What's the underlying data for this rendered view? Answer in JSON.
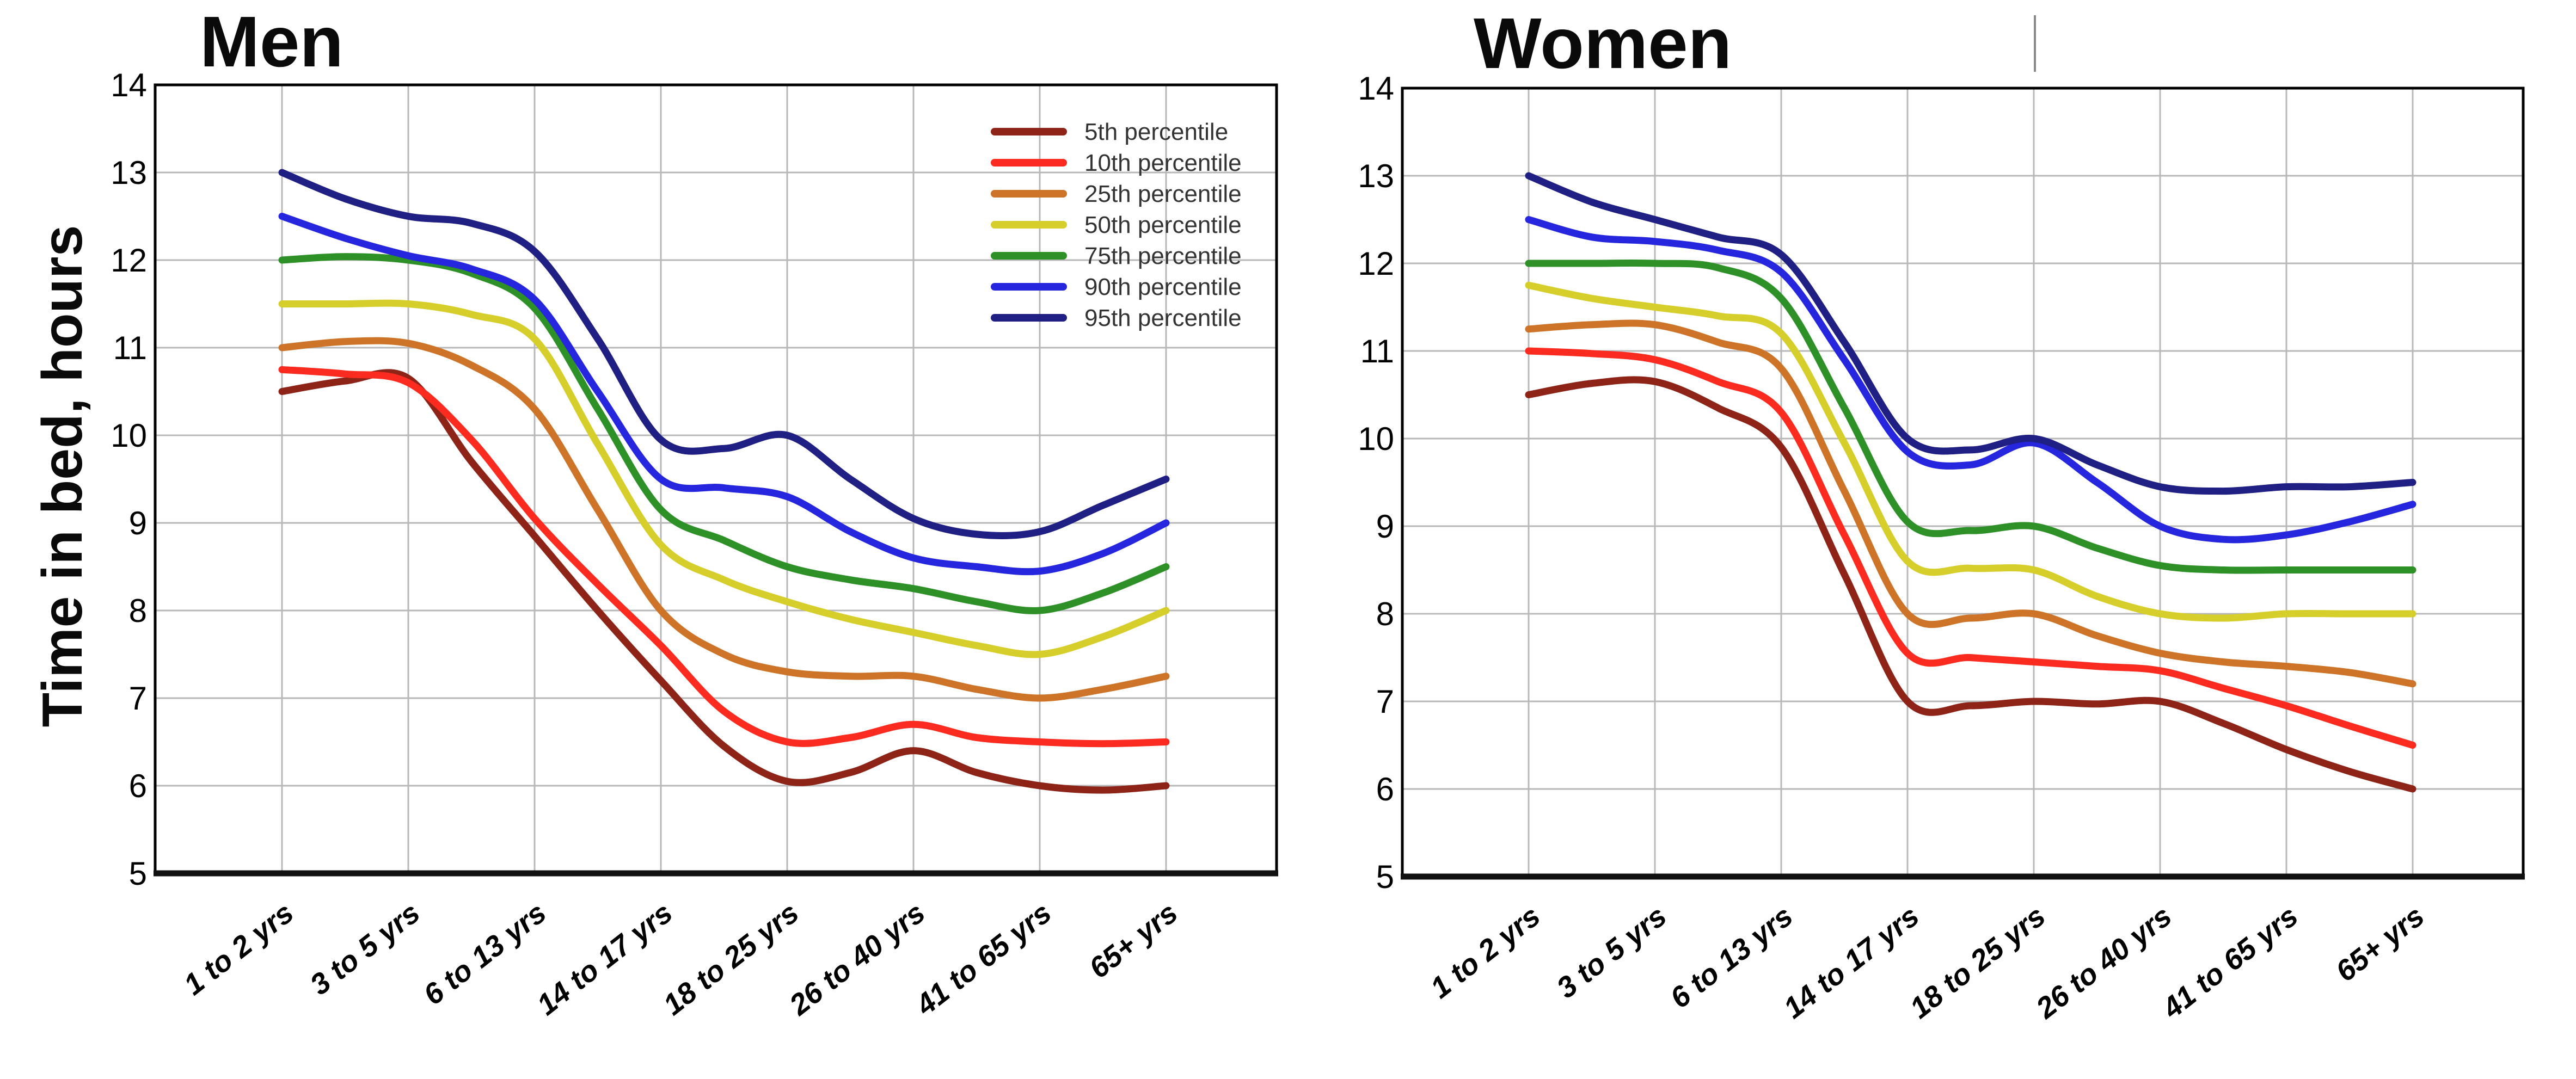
{
  "figure": {
    "description": "Two side-by-side line charts of time in bed (hours) by age group, percentiles 5th-95th",
    "left_chart_title": "Men",
    "right_chart_title": "Women",
    "stray_mark": "short vertical gray line above right chart"
  },
  "y_axis": {
    "label": "Time in bed, hours",
    "min": 5,
    "max": 14,
    "ticks": [
      14,
      13,
      12,
      11,
      10,
      9,
      8,
      7,
      6,
      5
    ]
  },
  "x_axis": {
    "categories": [
      "1 to 2 yrs",
      "3 to 5 yrs",
      "6 to 13 yrs",
      "14 to 17 yrs",
      "18 to 25 yrs",
      "26 to 40 yrs",
      "41 to 65 yrs",
      "65+ yrs"
    ]
  },
  "legend": {
    "position": "inside top-right of Men chart",
    "entries": [
      {
        "label": "5th percentile",
        "color": "#8E2418"
      },
      {
        "label": "10th percentile",
        "color": "#FB2B20"
      },
      {
        "label": "25th percentile",
        "color": "#CE7428"
      },
      {
        "label": "50th percentile",
        "color": "#D5CE2B"
      },
      {
        "label": "75th percentile",
        "color": "#2E9128"
      },
      {
        "label": "90th percentile",
        "color": "#2626DF"
      },
      {
        "label": "95th percentile",
        "color": "#1F1F84"
      }
    ]
  },
  "chart_data": [
    {
      "type": "line",
      "title": "Men",
      "xlabel": "",
      "ylabel": "Time in bed, hours",
      "ylim": [
        5,
        14
      ],
      "grid": true,
      "categories": [
        "1 to 2 yrs",
        "3 to 5 yrs",
        "6 to 13 yrs",
        "14 to 17 yrs",
        "18 to 25 yrs",
        "26 to 40 yrs",
        "41 to 65 yrs",
        "65+ yrs"
      ],
      "series": [
        {
          "name": "5th percentile",
          "color": "#8E2418",
          "values": [
            10.5,
            10.65,
            8.85,
            7.2,
            6.05,
            6.4,
            6.0,
            6.0
          ],
          "curve_halfstep": [
            10.5,
            10.62,
            10.65,
            9.7,
            8.85,
            8.0,
            7.2,
            6.45,
            6.05,
            6.15,
            6.4,
            6.15,
            6.0,
            5.95,
            6.0
          ]
        },
        {
          "name": "10th percentile",
          "color": "#FB2B20",
          "values": [
            10.75,
            10.6,
            9.05,
            7.6,
            6.5,
            6.7,
            6.5,
            6.5
          ],
          "curve_halfstep": [
            10.75,
            10.7,
            10.6,
            9.95,
            9.05,
            8.3,
            7.6,
            6.85,
            6.5,
            6.55,
            6.7,
            6.55,
            6.5,
            6.48,
            6.5
          ]
        },
        {
          "name": "25th percentile",
          "color": "#CE7428",
          "values": [
            11.0,
            11.05,
            10.3,
            8.0,
            7.3,
            7.25,
            7.0,
            7.25
          ],
          "curve_halfstep": [
            11.0,
            11.07,
            11.05,
            10.8,
            10.3,
            9.15,
            8.0,
            7.5,
            7.3,
            7.25,
            7.25,
            7.1,
            7.0,
            7.1,
            7.25
          ]
        },
        {
          "name": "50th percentile",
          "color": "#D5CE2B",
          "values": [
            11.5,
            11.5,
            11.1,
            8.75,
            8.1,
            7.75,
            7.5,
            8.0
          ],
          "curve_halfstep": [
            11.5,
            11.5,
            11.5,
            11.38,
            11.1,
            9.9,
            8.75,
            8.35,
            8.1,
            7.9,
            7.75,
            7.6,
            7.5,
            7.7,
            8.0
          ]
        },
        {
          "name": "75th percentile",
          "color": "#2E9128",
          "values": [
            12.0,
            12.0,
            11.45,
            9.15,
            8.5,
            8.25,
            8.0,
            8.5
          ],
          "curve_halfstep": [
            12.0,
            12.04,
            12.0,
            11.85,
            11.45,
            10.3,
            9.15,
            8.8,
            8.5,
            8.35,
            8.25,
            8.1,
            8.0,
            8.2,
            8.5
          ]
        },
        {
          "name": "90th percentile",
          "color": "#2626DF",
          "values": [
            12.5,
            12.05,
            11.55,
            9.5,
            9.3,
            8.6,
            8.45,
            9.0
          ],
          "curve_halfstep": [
            12.5,
            12.25,
            12.05,
            11.9,
            11.55,
            10.5,
            9.5,
            9.4,
            9.3,
            8.9,
            8.6,
            8.5,
            8.45,
            8.65,
            9.0
          ]
        },
        {
          "name": "95th percentile",
          "color": "#1F1F84",
          "values": [
            13.0,
            12.5,
            12.1,
            9.95,
            10.0,
            9.05,
            8.9,
            9.5
          ],
          "curve_halfstep": [
            13.0,
            12.7,
            12.5,
            12.42,
            12.1,
            11.1,
            9.95,
            9.85,
            10.0,
            9.5,
            9.05,
            8.87,
            8.9,
            9.2,
            9.5
          ]
        }
      ]
    },
    {
      "type": "line",
      "title": "Women",
      "xlabel": "",
      "ylabel": "",
      "ylim": [
        5,
        14
      ],
      "grid": true,
      "categories": [
        "1 to 2 yrs",
        "3 to 5 yrs",
        "6 to 13 yrs",
        "14 to 17 yrs",
        "18 to 25 yrs",
        "26 to 40 yrs",
        "41 to 65 yrs",
        "65+ yrs"
      ],
      "series": [
        {
          "name": "5th percentile",
          "color": "#8E2418",
          "values": [
            10.5,
            10.65,
            9.9,
            7.0,
            7.0,
            7.0,
            6.45,
            6.0
          ],
          "curve_halfstep": [
            10.5,
            10.63,
            10.65,
            10.35,
            9.9,
            8.45,
            7.0,
            6.95,
            7.0,
            6.97,
            7.0,
            6.75,
            6.45,
            6.2,
            6.0
          ]
        },
        {
          "name": "10th percentile",
          "color": "#FB2B20",
          "values": [
            11.0,
            10.9,
            10.3,
            7.55,
            7.45,
            7.35,
            6.95,
            6.5
          ],
          "curve_halfstep": [
            11.0,
            10.97,
            10.9,
            10.65,
            10.3,
            8.9,
            7.55,
            7.5,
            7.45,
            7.4,
            7.35,
            7.15,
            6.95,
            6.72,
            6.5
          ]
        },
        {
          "name": "25th percentile",
          "color": "#CE7428",
          "values": [
            11.25,
            11.3,
            10.8,
            8.0,
            8.0,
            7.55,
            7.4,
            7.2
          ],
          "curve_halfstep": [
            11.25,
            11.3,
            11.3,
            11.1,
            10.8,
            9.4,
            8.0,
            7.95,
            8.0,
            7.75,
            7.55,
            7.45,
            7.4,
            7.33,
            7.2
          ]
        },
        {
          "name": "50th percentile",
          "color": "#D5CE2B",
          "values": [
            11.75,
            11.5,
            11.2,
            8.6,
            8.5,
            8.0,
            8.0,
            8.0
          ],
          "curve_halfstep": [
            11.75,
            11.6,
            11.5,
            11.4,
            11.2,
            9.95,
            8.6,
            8.52,
            8.5,
            8.2,
            8.0,
            7.95,
            8.0,
            8.0,
            8.0
          ]
        },
        {
          "name": "75th percentile",
          "color": "#2E9128",
          "values": [
            12.0,
            12.0,
            11.6,
            9.05,
            9.0,
            8.55,
            8.5,
            8.5
          ],
          "curve_halfstep": [
            12.0,
            12.0,
            12.0,
            11.95,
            11.6,
            10.35,
            9.05,
            8.95,
            9.0,
            8.75,
            8.55,
            8.5,
            8.5,
            8.5,
            8.5
          ]
        },
        {
          "name": "90th percentile",
          "color": "#2626DF",
          "values": [
            12.5,
            12.25,
            11.9,
            9.85,
            9.95,
            9.0,
            8.9,
            9.25
          ],
          "curve_halfstep": [
            12.5,
            12.3,
            12.25,
            12.15,
            11.9,
            10.9,
            9.85,
            9.7,
            9.95,
            9.5,
            9.0,
            8.85,
            8.9,
            9.05,
            9.25
          ]
        },
        {
          "name": "95th percentile",
          "color": "#1F1F84",
          "values": [
            13.0,
            12.5,
            12.1,
            10.0,
            10.0,
            9.45,
            9.45,
            9.5
          ],
          "curve_halfstep": [
            13.0,
            12.7,
            12.5,
            12.3,
            12.1,
            11.1,
            10.0,
            9.87,
            10.0,
            9.7,
            9.45,
            9.4,
            9.45,
            9.45,
            9.5
          ]
        }
      ]
    }
  ]
}
